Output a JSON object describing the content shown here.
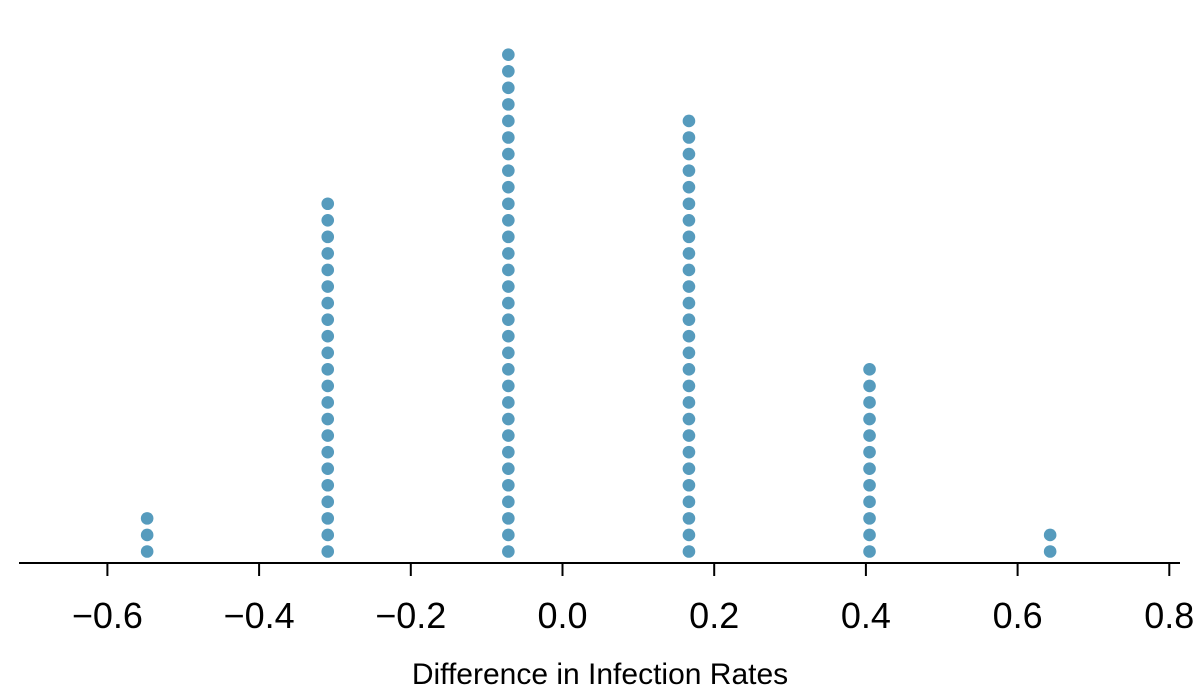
{
  "figure": {
    "background": "#ffffff"
  },
  "chart_data": {
    "type": "scatter",
    "subtype": "dotplot",
    "title": "",
    "xlabel": "Difference in Infection Rates",
    "ylabel": "",
    "xlim": [
      -0.716,
      0.815
    ],
    "grid": false,
    "legend_position": "none",
    "dot_color": "#569BBD",
    "axis_color": "#000000",
    "tick_label_color": "#000000",
    "x_ticks": [
      {
        "value": -0.6,
        "label": "−0.6"
      },
      {
        "value": -0.4,
        "label": "−0.4"
      },
      {
        "value": -0.2,
        "label": "−0.2"
      },
      {
        "value": 0.0,
        "label": "0.0"
      },
      {
        "value": 0.2,
        "label": "0.2"
      },
      {
        "value": 0.4,
        "label": "0.4"
      },
      {
        "value": 0.6,
        "label": "0.6"
      },
      {
        "value": 0.8,
        "label": "0.8"
      }
    ],
    "points": [
      {
        "x": -0.5476,
        "count": 3
      },
      {
        "x": -0.3095,
        "count": 22
      },
      {
        "x": -0.0714,
        "count": 31
      },
      {
        "x": 0.1667,
        "count": 27
      },
      {
        "x": 0.4048,
        "count": 12
      },
      {
        "x": 0.6429,
        "count": 2
      }
    ]
  }
}
